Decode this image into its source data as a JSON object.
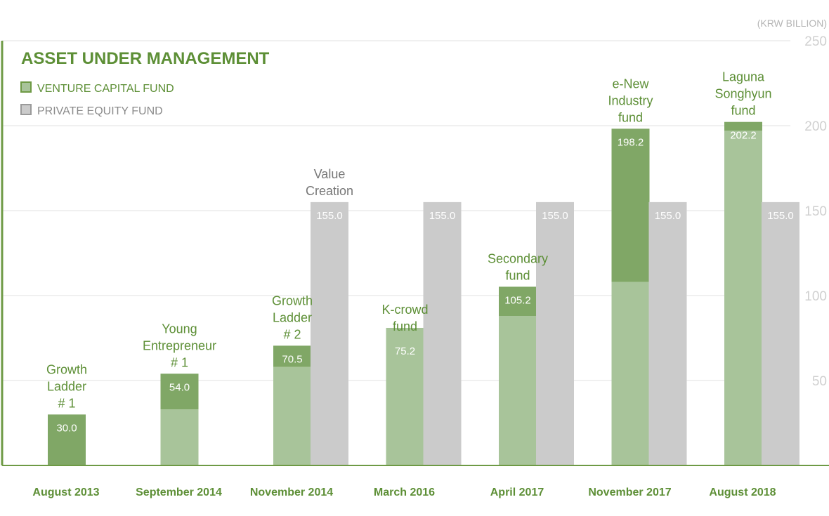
{
  "chart_data": {
    "type": "bar",
    "title": "ASSET UNDER MANAGEMENT",
    "unit_label": "(KRW BILLION)",
    "ylim": [
      0,
      250
    ],
    "yticks": [
      50,
      100,
      150,
      200,
      250
    ],
    "grid": true,
    "legend_position": "top-left",
    "categories": [
      "August 2013",
      "September 2014",
      "November 2014",
      "March 2016",
      "April 2017",
      "November 2017",
      "August 2018"
    ],
    "series": [
      {
        "name": "VENTURE CAPITAL FUND",
        "color": "#a8c49a",
        "new_fund_color": "#80a766",
        "values": [
          30.0,
          54.0,
          70.5,
          75.2,
          105.2,
          198.2,
          202.2
        ],
        "value_labels": [
          "30.0",
          "54.0",
          "70.5",
          "75.2",
          "105.2",
          "198.2",
          "202.2"
        ],
        "previous_values": [
          0,
          33,
          58,
          81,
          88,
          108,
          197
        ],
        "fund_labels": [
          [
            "Growth",
            "Ladder",
            "# 1"
          ],
          [
            "Young",
            "Entrepreneur",
            "# 1"
          ],
          [
            "Growth",
            "Ladder",
            "# 2"
          ],
          [
            "K-crowd",
            "fund"
          ],
          [
            "Secondary",
            "fund"
          ],
          [
            "e-New",
            "Industry",
            "fund"
          ],
          [
            "Laguna",
            "Songhyun",
            "fund"
          ]
        ]
      },
      {
        "name": "PRIVATE EQUITY FUND",
        "color": "#cbcbcb",
        "values": [
          null,
          null,
          155.0,
          155.0,
          155.0,
          155.0,
          155.0
        ],
        "value_labels": [
          null,
          null,
          "155.0",
          "155.0",
          "155.0",
          "155.0",
          "155.0"
        ],
        "fund_labels": [
          null,
          null,
          [
            "Value",
            "Creation"
          ],
          null,
          null,
          null,
          null
        ]
      }
    ]
  }
}
